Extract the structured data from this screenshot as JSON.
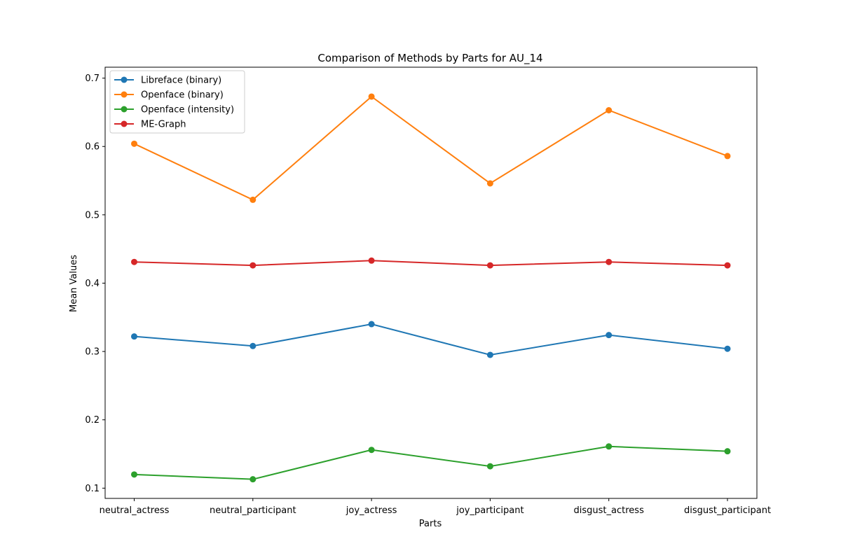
{
  "chart_data": {
    "type": "line",
    "title": "Comparison of Methods by Parts for AU_14",
    "xlabel": "Parts",
    "ylabel": "Mean Values",
    "categories": [
      "neutral_actress",
      "neutral_participant",
      "joy_actress",
      "joy_participant",
      "disgust_actress",
      "disgust_participant"
    ],
    "ylim": [
      0.085,
      0.716
    ],
    "yticks": [
      0.1,
      0.2,
      0.3,
      0.4,
      0.5,
      0.6,
      0.7
    ],
    "grid": false,
    "legend_position": "top-left",
    "series": [
      {
        "name": "Libreface (binary)",
        "color": "#1f77b4",
        "values": [
          0.322,
          0.308,
          0.34,
          0.295,
          0.324,
          0.304
        ]
      },
      {
        "name": "Openface (binary)",
        "color": "#ff7f0e",
        "values": [
          0.604,
          0.522,
          0.673,
          0.546,
          0.653,
          0.586
        ]
      },
      {
        "name": "Openface (intensity)",
        "color": "#2ca02c",
        "values": [
          0.12,
          0.113,
          0.156,
          0.132,
          0.161,
          0.154
        ]
      },
      {
        "name": "ME-Graph",
        "color": "#d62728",
        "values": [
          0.431,
          0.426,
          0.433,
          0.426,
          0.431,
          0.426
        ]
      }
    ]
  }
}
